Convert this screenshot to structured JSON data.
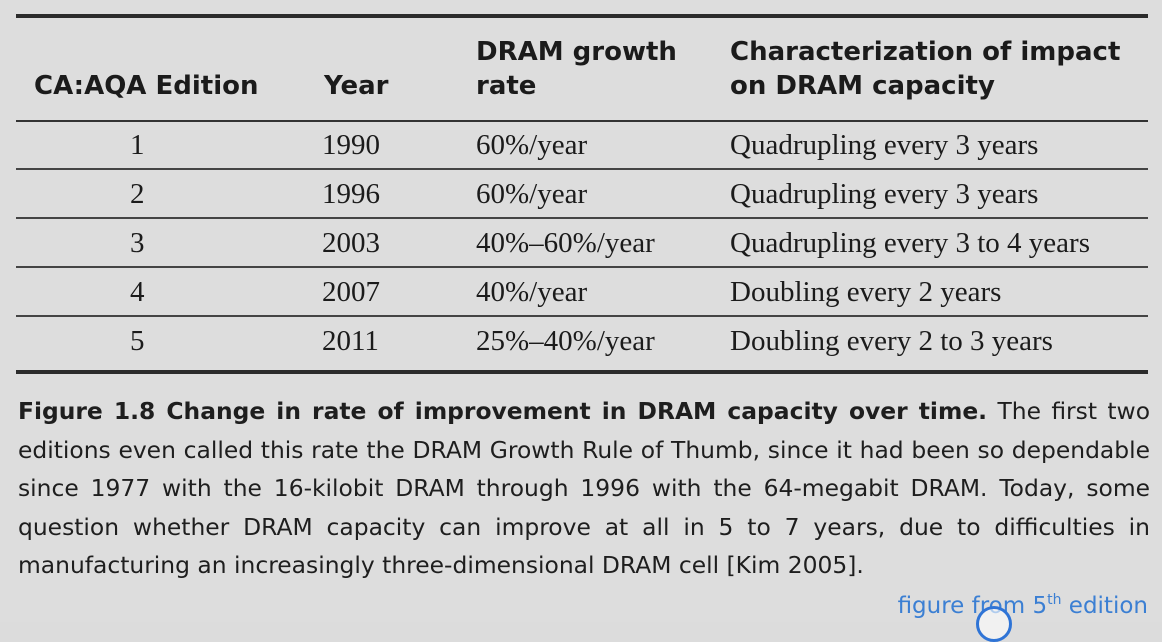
{
  "table": {
    "headers": {
      "edition": "CA:AQA Edition",
      "year": "Year",
      "growth_line1": "DRAM growth",
      "growth_line2": "rate",
      "impact_line1": "Characterization of impact",
      "impact_line2": "on DRAM capacity"
    },
    "rows": [
      {
        "edition": "1",
        "year": "1990",
        "growth": "60%/year",
        "impact": "Quadrupling every 3 years"
      },
      {
        "edition": "2",
        "year": "1996",
        "growth": "60%/year",
        "impact": "Quadrupling every 3 years"
      },
      {
        "edition": "3",
        "year": "2003",
        "growth": "40%–60%/year",
        "impact": "Quadrupling every 3 to 4 years"
      },
      {
        "edition": "4",
        "year": "2007",
        "growth": "40%/year",
        "impact": "Doubling every 2 years"
      },
      {
        "edition": "5",
        "year": "2011",
        "growth": "25%–40%/year",
        "impact": "Doubling every 2 to 3 years"
      }
    ]
  },
  "caption": {
    "label": "Figure 1.8",
    "title": "Change in rate of improvement in DRAM capacity over time.",
    "body": "The first two editions even called this rate the DRAM Growth Rule of Thumb, since it had been so dependable since 1977 with the 16-kilobit DRAM through 1996 with the 64-megabit DRAM. Today, some question whether DRAM capacity can improve at all in 5 to 7 years, due to difficulties in manufacturing an increasingly three-dimensional DRAM cell [Kim 2005]."
  },
  "source_note": {
    "prefix": "figure from 5",
    "superscript": "th",
    "suffix": " edition",
    "color": "#3b7fd3"
  }
}
